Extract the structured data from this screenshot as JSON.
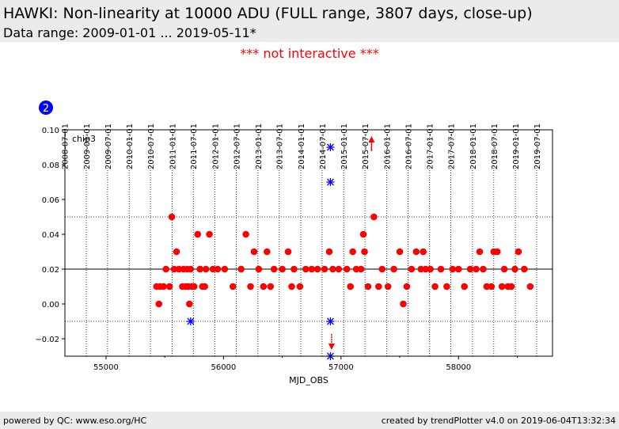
{
  "header": {
    "title": "HAWKI: Non-linearity at 10000 ADU (FULL range, 3807 days, close-up)",
    "subtitle": "Data range: 2009-01-01 ... 2019-05-11*"
  },
  "notice": "*** not interactive ***",
  "footer": {
    "left": "powered by QC: www.eso.org/HC",
    "right": "created by trendPlotter v4.0 on 2019-06-04T13:32:34"
  },
  "badge": {
    "label": "2",
    "color": "#0000ff"
  },
  "colors": {
    "points": "#ff0000",
    "markers": "#0000ff",
    "arrows": "#ff0000",
    "refline": "#000000"
  },
  "chart_data": {
    "type": "scatter",
    "panel_label": "chip3",
    "xlabel": "MJD_OBS",
    "ylabel": "",
    "xlim": [
      54650,
      58800
    ],
    "ylim": [
      -0.03,
      0.1
    ],
    "x_ticks": [
      55000,
      56000,
      57000,
      58000
    ],
    "y_ticks": [
      -0.02,
      0.0,
      0.02,
      0.04,
      0.06,
      0.08,
      0.1
    ],
    "y_tick_labels": [
      "−0.02",
      "0.00",
      "0.02",
      "0.04",
      "0.06",
      "0.08",
      "0.10"
    ],
    "date_ticks": [
      {
        "label": "2008-07-01",
        "mjd": 54648
      },
      {
        "label": "2009-01-01",
        "mjd": 54832
      },
      {
        "label": "2009-07-01",
        "mjd": 55013
      },
      {
        "label": "2010-01-01",
        "mjd": 55197
      },
      {
        "label": "2010-07-01",
        "mjd": 55378
      },
      {
        "label": "2011-01-01",
        "mjd": 55562
      },
      {
        "label": "2011-07-01",
        "mjd": 55743
      },
      {
        "label": "2012-01-01",
        "mjd": 55927
      },
      {
        "label": "2012-07-01",
        "mjd": 56109
      },
      {
        "label": "2013-01-01",
        "mjd": 56293
      },
      {
        "label": "2013-07-01",
        "mjd": 56474
      },
      {
        "label": "2014-01-01",
        "mjd": 56658
      },
      {
        "label": "2014-07-01",
        "mjd": 56839
      },
      {
        "label": "2015-01-01",
        "mjd": 57023
      },
      {
        "label": "2015-07-01",
        "mjd": 57204
      },
      {
        "label": "2016-01-01",
        "mjd": 57388
      },
      {
        "label": "2016-07-01",
        "mjd": 57570
      },
      {
        "label": "2017-01-01",
        "mjd": 57754
      },
      {
        "label": "2017-07-01",
        "mjd": 57935
      },
      {
        "label": "2018-01-01",
        "mjd": 58119
      },
      {
        "label": "2018-07-01",
        "mjd": 58300
      },
      {
        "label": "2019-01-01",
        "mjd": 58484
      },
      {
        "label": "2019-07-01",
        "mjd": 58665
      }
    ],
    "reference_line": 0.02,
    "threshold_lines": [
      0.05,
      -0.01
    ],
    "series": [
      {
        "marker": "dot",
        "points": [
          [
            55430,
            0.01
          ],
          [
            55450,
            0.0
          ],
          [
            55460,
            0.01
          ],
          [
            55490,
            0.01
          ],
          [
            55510,
            0.02
          ],
          [
            55540,
            0.01
          ],
          [
            55560,
            0.05
          ],
          [
            55580,
            0.02
          ],
          [
            55600,
            0.03
          ],
          [
            55620,
            0.02
          ],
          [
            55650,
            0.01
          ],
          [
            55660,
            0.02
          ],
          [
            55680,
            0.01
          ],
          [
            55690,
            0.02
          ],
          [
            55700,
            0.01
          ],
          [
            55710,
            0.0
          ],
          [
            55720,
            0.02
          ],
          [
            55730,
            0.01
          ],
          [
            55750,
            0.01
          ],
          [
            55780,
            0.04
          ],
          [
            55800,
            0.02
          ],
          [
            55820,
            0.01
          ],
          [
            55840,
            0.01
          ],
          [
            55850,
            0.02
          ],
          [
            55880,
            0.04
          ],
          [
            55910,
            0.02
          ],
          [
            55950,
            0.02
          ],
          [
            56010,
            0.02
          ],
          [
            56080,
            0.01
          ],
          [
            56150,
            0.02
          ],
          [
            56190,
            0.04
          ],
          [
            56230,
            0.01
          ],
          [
            56260,
            0.03
          ],
          [
            56300,
            0.02
          ],
          [
            56340,
            0.01
          ],
          [
            56370,
            0.03
          ],
          [
            56400,
            0.01
          ],
          [
            56430,
            0.02
          ],
          [
            56500,
            0.02
          ],
          [
            56550,
            0.03
          ],
          [
            56580,
            0.01
          ],
          [
            56600,
            0.02
          ],
          [
            56650,
            0.01
          ],
          [
            56700,
            0.02
          ],
          [
            56750,
            0.02
          ],
          [
            56800,
            0.02
          ],
          [
            56860,
            0.02
          ],
          [
            56900,
            0.03
          ],
          [
            56930,
            0.02
          ],
          [
            56980,
            0.02
          ],
          [
            57050,
            0.02
          ],
          [
            57080,
            0.01
          ],
          [
            57100,
            0.03
          ],
          [
            57130,
            0.02
          ],
          [
            57170,
            0.02
          ],
          [
            57190,
            0.04
          ],
          [
            57200,
            0.03
          ],
          [
            57230,
            0.01
          ],
          [
            57280,
            0.05
          ],
          [
            57320,
            0.01
          ],
          [
            57350,
            0.02
          ],
          [
            57400,
            0.01
          ],
          [
            57450,
            0.02
          ],
          [
            57500,
            0.03
          ],
          [
            57530,
            0.0
          ],
          [
            57560,
            0.01
          ],
          [
            57600,
            0.02
          ],
          [
            57640,
            0.03
          ],
          [
            57680,
            0.02
          ],
          [
            57700,
            0.03
          ],
          [
            57720,
            0.02
          ],
          [
            57760,
            0.02
          ],
          [
            57800,
            0.01
          ],
          [
            57850,
            0.02
          ],
          [
            57900,
            0.01
          ],
          [
            57950,
            0.02
          ],
          [
            58000,
            0.02
          ],
          [
            58050,
            0.01
          ],
          [
            58100,
            0.02
          ],
          [
            58150,
            0.02
          ],
          [
            58180,
            0.03
          ],
          [
            58210,
            0.02
          ],
          [
            58240,
            0.01
          ],
          [
            58280,
            0.01
          ],
          [
            58300,
            0.03
          ],
          [
            58330,
            0.03
          ],
          [
            58370,
            0.01
          ],
          [
            58390,
            0.02
          ],
          [
            58420,
            0.01
          ],
          [
            58450,
            0.01
          ],
          [
            58480,
            0.02
          ],
          [
            58510,
            0.03
          ],
          [
            58560,
            0.02
          ],
          [
            58610,
            0.01
          ]
        ]
      },
      {
        "marker": "asterisk",
        "points": [
          [
            55720,
            -0.01
          ],
          [
            56910,
            0.09
          ],
          [
            56910,
            0.07
          ],
          [
            56910,
            -0.01
          ],
          [
            56910,
            -0.03
          ]
        ]
      }
    ],
    "outlier_arrows": [
      {
        "mjd": 57260,
        "direction": "up"
      },
      {
        "mjd": 56920,
        "direction": "down"
      }
    ]
  }
}
